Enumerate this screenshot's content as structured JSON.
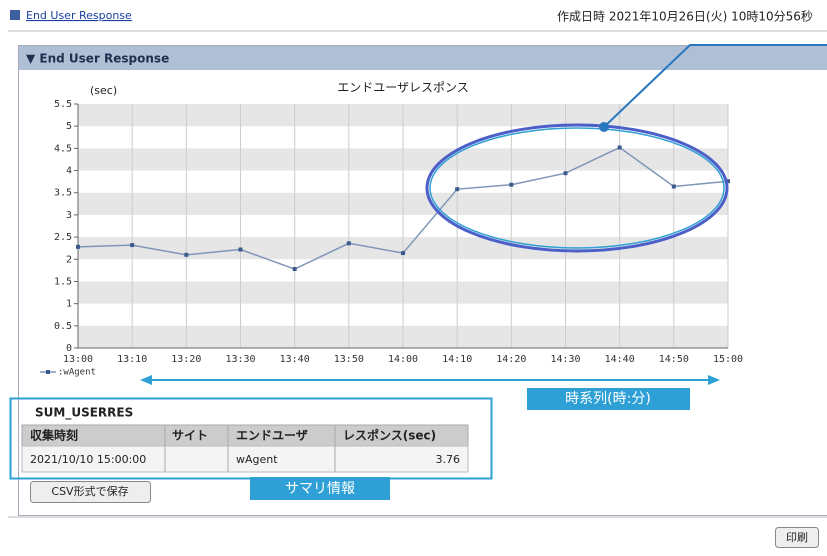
{
  "header": {
    "link": "End User Response",
    "created": "作成日時  2021年10月26日(火) 10時10分56秒"
  },
  "panel": {
    "title": "▼ End User Response"
  },
  "chart_data": {
    "type": "line",
    "title": "エンドユーザレスポンス",
    "y_label": "(sec)",
    "categories": [
      "13:00",
      "13:10",
      "13:20",
      "13:30",
      "13:40",
      "13:50",
      "14:00",
      "14:10",
      "14:20",
      "14:30",
      "14:40",
      "14:50",
      "15:00"
    ],
    "series": [
      {
        "name": ":wAgent",
        "color": "#7f96b8",
        "values": [
          2.28,
          2.32,
          2.1,
          2.22,
          1.78,
          2.36,
          2.14,
          3.58,
          3.68,
          3.94,
          4.52,
          3.64,
          3.76
        ]
      }
    ],
    "ylim": [
      0,
      5.5
    ],
    "yticks": [
      0,
      0.5,
      1,
      1.5,
      2,
      2.5,
      3,
      3.5,
      4,
      4.5,
      5,
      5.5
    ],
    "grid": true
  },
  "table": {
    "title": "SUM_USERRES",
    "columns": [
      "収集時刻",
      "サイト",
      "エンドユーザ",
      "レスポンス(sec)"
    ],
    "rows": [
      {
        "time": "2021/10/10 15:00:00",
        "user": "wAgent",
        "response": "3.76"
      }
    ]
  },
  "buttons": {
    "csv": "CSV形式で保存",
    "print": "印刷"
  },
  "annotations": {
    "time_axis": "時系列(時:分)",
    "summary": "サマリ情報"
  }
}
